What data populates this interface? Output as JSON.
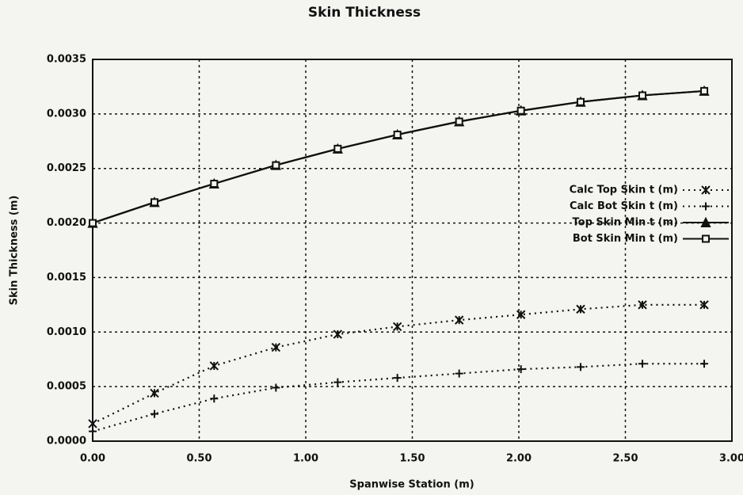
{
  "chart_data": {
    "type": "line",
    "title": "Skin Thickness",
    "xlabel": "Spanwise Station (m)",
    "ylabel": "Skin Thickness (m)",
    "x": [
      0,
      0.29,
      0.57,
      0.86,
      1.15,
      1.43,
      1.72,
      2.01,
      2.29,
      2.58,
      2.87
    ],
    "series": [
      {
        "name": "Calc Top Skin t (m)",
        "color": "#111111",
        "line_style": "dotted",
        "marker": "asterisk",
        "values": [
          0.00016,
          0.00044,
          0.00069,
          0.00086,
          0.00098,
          0.00105,
          0.00111,
          0.00116,
          0.00121,
          0.00125,
          0.00125
        ]
      },
      {
        "name": "Calc Bot Skin t (m)",
        "color": "#111111",
        "line_style": "dotted",
        "marker": "plus",
        "values": [
          9e-05,
          0.00025,
          0.00039,
          0.00049,
          0.00054,
          0.00058,
          0.00062,
          0.00066,
          0.00068,
          0.00071,
          0.00071
        ]
      },
      {
        "name": "Top Skin Min t (m)",
        "color": "#111111",
        "line_style": "solid",
        "marker": "triangle",
        "values": [
          0.002,
          0.00219,
          0.00236,
          0.00253,
          0.00268,
          0.00281,
          0.00293,
          0.00303,
          0.00311,
          0.00317,
          0.00321
        ]
      },
      {
        "name": "Bot Skin Min t (m)",
        "color": "#111111",
        "line_style": "solid",
        "marker": "square",
        "values": [
          0.002,
          0.00219,
          0.00236,
          0.00253,
          0.00268,
          0.00281,
          0.00293,
          0.00303,
          0.00311,
          0.00317,
          0.00321
        ]
      }
    ],
    "xlim": [
      0,
      3
    ],
    "xticks": [
      {
        "value": 0,
        "label": "0.00"
      },
      {
        "value": 0.5,
        "label": "0.50"
      },
      {
        "value": 1,
        "label": "1.00"
      },
      {
        "value": 1.5,
        "label": "1.50"
      },
      {
        "value": 2,
        "label": "2.00"
      },
      {
        "value": 2.5,
        "label": "2.50"
      },
      {
        "value": 3,
        "label": "3.00"
      }
    ],
    "ylim": [
      0,
      0.0035
    ],
    "yticks": [
      {
        "value": 0,
        "label": "0.0000"
      },
      {
        "value": 0.0005,
        "label": "0.0005"
      },
      {
        "value": 0.001,
        "label": "0.0010"
      },
      {
        "value": 0.0015,
        "label": "0.0015"
      },
      {
        "value": 0.002,
        "label": "0.0020"
      },
      {
        "value": 0.0025,
        "label": "0.0025"
      },
      {
        "value": 0.003,
        "label": "0.0030"
      },
      {
        "value": 0.0035,
        "label": "0.0035"
      }
    ],
    "grid": true,
    "legend": "right"
  }
}
